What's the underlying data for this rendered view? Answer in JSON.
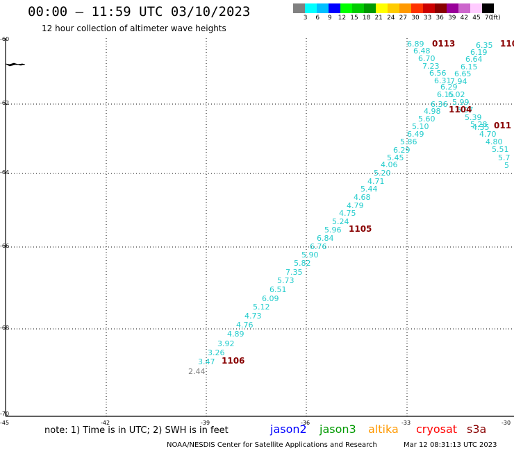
{
  "header": {
    "title": "00:00 — 11:59 UTC 03/10/2023",
    "subtitle": "12 hour collection of altimeter wave heights"
  },
  "legend": {
    "swatches": [
      "#808080",
      "#00ffff",
      "#00bfff",
      "#0000ff",
      "#00ff00",
      "#00cc00",
      "#009900",
      "#ffff00",
      "#ffcc00",
      "#ff9900",
      "#ff3300",
      "#cc0000",
      "#880000",
      "#990099",
      "#cc66cc",
      "#ffccff",
      "#000000"
    ],
    "labels": [
      "3",
      "6",
      "9",
      "12",
      "15",
      "18",
      "21",
      "24",
      "27",
      "30",
      "33",
      "36",
      "39",
      "42",
      "45",
      "70"
    ],
    "unit": "(ft)"
  },
  "axes": {
    "lon_ticks": [
      "-45",
      "-42",
      "-39",
      "-36",
      "-33",
      "-30"
    ],
    "lat_ticks": [
      "-60",
      "-62",
      "-64",
      "-66",
      "-68",
      "-70"
    ]
  },
  "passes": [
    {
      "id": "0113",
      "color": "#880000"
    },
    {
      "id": "110",
      "color": "#880000"
    },
    {
      "id": "1104",
      "color": "#880000"
    },
    {
      "id": "011",
      "color": "#880000"
    },
    {
      "id": "1105",
      "color": "#880000"
    },
    {
      "id": "1106",
      "color": "#880000"
    }
  ],
  "observations": [
    {
      "value": "6.89",
      "color": "#22cccc"
    },
    {
      "value": "6.48",
      "color": "#22cccc"
    },
    {
      "value": "6.70",
      "color": "#22cccc"
    },
    {
      "value": "7.23",
      "color": "#22cccc"
    },
    {
      "value": "6.56",
      "color": "#22cccc"
    },
    {
      "value": "6.31",
      "color": "#22cccc"
    },
    {
      "value": "6.29",
      "color": "#22cccc"
    },
    {
      "value": "6.15",
      "color": "#22cccc"
    },
    {
      "value": "6.36",
      "color": "#22cccc"
    },
    {
      "value": "4.98",
      "color": "#22cccc"
    },
    {
      "value": "5.60",
      "color": "#22cccc"
    },
    {
      "value": "5.10",
      "color": "#22cccc"
    },
    {
      "value": "6.49",
      "color": "#22cccc"
    },
    {
      "value": "5.86",
      "color": "#22cccc"
    },
    {
      "value": "6.29",
      "color": "#22cccc"
    },
    {
      "value": "5.45",
      "color": "#22cccc"
    },
    {
      "value": "4.06",
      "color": "#22cccc"
    },
    {
      "value": "5.20",
      "color": "#22cccc"
    },
    {
      "value": "4.71",
      "color": "#22cccc"
    },
    {
      "value": "5.44",
      "color": "#22cccc"
    },
    {
      "value": "4.68",
      "color": "#22cccc"
    },
    {
      "value": "4.79",
      "color": "#22cccc"
    },
    {
      "value": "4.75",
      "color": "#22cccc"
    },
    {
      "value": "5.24",
      "color": "#22cccc"
    },
    {
      "value": "5.96",
      "color": "#22cccc"
    },
    {
      "value": "6.84",
      "color": "#22cccc"
    },
    {
      "value": "6.76",
      "color": "#22cccc"
    },
    {
      "value": "5.90",
      "color": "#22cccc"
    },
    {
      "value": "5.82",
      "color": "#22cccc"
    },
    {
      "value": "7.35",
      "color": "#22cccc"
    },
    {
      "value": "5.73",
      "color": "#22cccc"
    },
    {
      "value": "6.51",
      "color": "#22cccc"
    },
    {
      "value": "6.09",
      "color": "#22cccc"
    },
    {
      "value": "5.12",
      "color": "#22cccc"
    },
    {
      "value": "4.73",
      "color": "#22cccc"
    },
    {
      "value": "4.76",
      "color": "#22cccc"
    },
    {
      "value": "4.89",
      "color": "#22cccc"
    },
    {
      "value": "3.92",
      "color": "#22cccc"
    },
    {
      "value": "3.26",
      "color": "#22cccc"
    },
    {
      "value": "3.47",
      "color": "#22cccc"
    },
    {
      "value": "2.44",
      "color": "#808080"
    },
    {
      "value": "6.35",
      "color": "#22cccc"
    },
    {
      "value": "6.19",
      "color": "#22cccc"
    },
    {
      "value": "6.64",
      "color": "#22cccc"
    },
    {
      "value": "6.15",
      "color": "#22cccc"
    },
    {
      "value": "6.65",
      "color": "#22cccc"
    },
    {
      "value": "7.94",
      "color": "#22cccc"
    },
    {
      "value": "6.02",
      "color": "#22cccc"
    },
    {
      "value": "5.99",
      "color": "#22cccc"
    },
    {
      "value": "6.07",
      "color": "#22cccc"
    },
    {
      "value": "5.39",
      "color": "#22cccc"
    },
    {
      "value": "5.28",
      "color": "#22cccc"
    },
    {
      "value": "4.35",
      "color": "#22cccc"
    },
    {
      "value": "4.70",
      "color": "#22cccc"
    },
    {
      "value": "4.80",
      "color": "#22cccc"
    },
    {
      "value": "5.51",
      "color": "#22cccc"
    },
    {
      "value": "5.7",
      "color": "#22cccc"
    },
    {
      "value": "5",
      "color": "#22cccc"
    }
  ],
  "footer": {
    "note": "note: 1) Time is in UTC; 2) SWH is in feet",
    "satellites": [
      {
        "name": "jason2",
        "color": "#0000ff"
      },
      {
        "name": "jason3",
        "color": "#009900"
      },
      {
        "name": "altika",
        "color": "#ff9900"
      },
      {
        "name": "cryosat",
        "color": "#ff0000"
      },
      {
        "name": "s3a",
        "color": "#880000"
      }
    ],
    "credit": "NOAA/NESDIS Center for Satellite Applications and Research",
    "generated": "Mar 12 08:31:13 UTC 2023"
  }
}
